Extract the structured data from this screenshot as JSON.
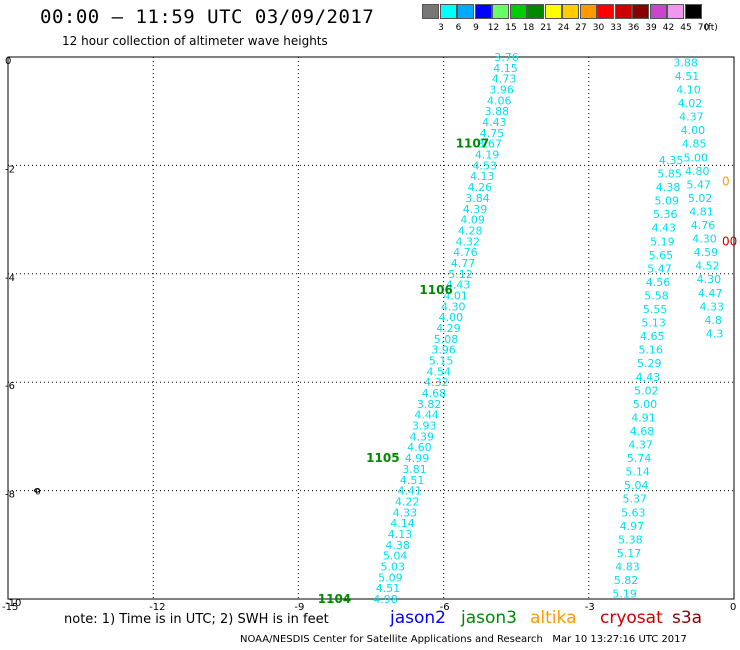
{
  "header": {
    "title": "00:00 – 11:59 UTC 03/09/2017",
    "subtitle": "12 hour collection of altimeter wave heights"
  },
  "legend": {
    "unit": "(ft)",
    "entries": [
      {
        "label": "3",
        "color": "#777777"
      },
      {
        "label": "6",
        "color": "#00ffff"
      },
      {
        "label": "9",
        "color": "#00aaff"
      },
      {
        "label": "12",
        "color": "#0000ff"
      },
      {
        "label": "15",
        "color": "#66ff66"
      },
      {
        "label": "18",
        "color": "#00cc00"
      },
      {
        "label": "21",
        "color": "#008800"
      },
      {
        "label": "24",
        "color": "#ffff00"
      },
      {
        "label": "27",
        "color": "#ffcc00"
      },
      {
        "label": "30",
        "color": "#ff9900"
      },
      {
        "label": "33",
        "color": "#ff0000"
      },
      {
        "label": "36",
        "color": "#cc0000"
      },
      {
        "label": "39",
        "color": "#880000"
      },
      {
        "label": "42",
        "color": "#cc44cc"
      },
      {
        "label": "45",
        "color": "#ee99ee"
      },
      {
        "label": "70",
        "color": "#000000"
      }
    ]
  },
  "map": {
    "lon_range": [
      -15,
      0
    ],
    "lat_range": [
      -10,
      0
    ],
    "x_ticks": [
      "-15",
      "-12",
      "-9",
      "-6",
      "-3",
      "0"
    ],
    "y_ticks": [
      "0",
      "-2",
      "-4",
      "-6",
      "-8",
      "-10"
    ],
    "island_label": "0",
    "tracks": [
      {
        "id": "1107",
        "label": "1107",
        "label_pos": {
          "lon": -5.75,
          "lat": -1.6
        },
        "points": [
          {
            "lon": -4.7,
            "lat": 0.0,
            "v": "3.76"
          },
          {
            "lon": -4.72,
            "lat": -0.2,
            "v": "4.15"
          },
          {
            "lon": -4.75,
            "lat": -0.4,
            "v": "4.73"
          },
          {
            "lon": -4.8,
            "lat": -0.6,
            "v": "3.96"
          },
          {
            "lon": -4.85,
            "lat": -0.8,
            "v": "4.06"
          },
          {
            "lon": -4.9,
            "lat": -1.0,
            "v": "3.88"
          },
          {
            "lon": -4.95,
            "lat": -1.2,
            "v": "4.43"
          },
          {
            "lon": -5.0,
            "lat": -1.4,
            "v": "4.75"
          },
          {
            "lon": -5.05,
            "lat": -1.6,
            "v": "3.67"
          },
          {
            "lon": -5.1,
            "lat": -1.8,
            "v": "4.19"
          },
          {
            "lon": -5.15,
            "lat": -2.0,
            "v": "4.53"
          },
          {
            "lon": -5.2,
            "lat": -2.2,
            "v": "4.13"
          },
          {
            "lon": -5.25,
            "lat": -2.4,
            "v": "4.26"
          },
          {
            "lon": -5.3,
            "lat": -2.6,
            "v": "3.84"
          },
          {
            "lon": -5.35,
            "lat": -2.8,
            "v": "4.39"
          },
          {
            "lon": -5.4,
            "lat": -3.0,
            "v": "4.09"
          }
        ]
      },
      {
        "id": "1106",
        "label": "1106",
        "label_pos": {
          "lon": -6.5,
          "lat": -4.3
        },
        "points": [
          {
            "lon": -5.45,
            "lat": -3.2,
            "v": "4.28"
          },
          {
            "lon": -5.5,
            "lat": -3.4,
            "v": "4.32"
          },
          {
            "lon": -5.55,
            "lat": -3.6,
            "v": "4.76"
          },
          {
            "lon": -5.6,
            "lat": -3.8,
            "v": "4.77"
          },
          {
            "lon": -5.65,
            "lat": -4.0,
            "v": "5.12"
          },
          {
            "lon": -5.7,
            "lat": -4.2,
            "v": "4.43"
          },
          {
            "lon": -5.75,
            "lat": -4.4,
            "v": "4.01"
          },
          {
            "lon": -5.8,
            "lat": -4.6,
            "v": "4.30"
          },
          {
            "lon": -5.85,
            "lat": -4.8,
            "v": "4.00"
          },
          {
            "lon": -5.9,
            "lat": -5.0,
            "v": "4.29"
          },
          {
            "lon": -5.95,
            "lat": -5.2,
            "v": "5.08"
          },
          {
            "lon": -6.0,
            "lat": -5.4,
            "v": "3.96"
          },
          {
            "lon": -6.05,
            "lat": -5.6,
            "v": "5.15"
          },
          {
            "lon": -6.1,
            "lat": -5.8,
            "v": "4.54"
          },
          {
            "lon": -6.15,
            "lat": -6.0,
            "v": "4.32"
          },
          {
            "lon": -6.2,
            "lat": -6.2,
            "v": "4.68"
          }
        ]
      },
      {
        "id": "1105",
        "label": "1105",
        "label_pos": {
          "lon": -7.6,
          "lat": -7.4
        },
        "points": [
          {
            "lon": -6.3,
            "lat": -6.4,
            "v": "3.82"
          },
          {
            "lon": -6.35,
            "lat": -6.6,
            "v": "4.44"
          },
          {
            "lon": -6.4,
            "lat": -6.8,
            "v": "3.93"
          },
          {
            "lon": -6.45,
            "lat": -7.0,
            "v": "4.39"
          },
          {
            "lon": -6.5,
            "lat": -7.2,
            "v": "4.60"
          },
          {
            "lon": -6.55,
            "lat": -7.4,
            "v": "4.99"
          },
          {
            "lon": -6.6,
            "lat": -7.6,
            "v": "3.81"
          },
          {
            "lon": -6.65,
            "lat": -7.8,
            "v": "4.51"
          },
          {
            "lon": -6.7,
            "lat": -8.0,
            "v": "4.41"
          },
          {
            "lon": -6.75,
            "lat": -8.2,
            "v": "4.22"
          },
          {
            "lon": -6.8,
            "lat": -8.4,
            "v": "4.33"
          },
          {
            "lon": -6.85,
            "lat": -8.6,
            "v": "4.14"
          }
        ]
      },
      {
        "id": "1104",
        "label": "1104",
        "label_pos": {
          "lon": -8.6,
          "lat": -10.0
        },
        "points": [
          {
            "lon": -6.9,
            "lat": -8.8,
            "v": "4.13"
          },
          {
            "lon": -6.95,
            "lat": -9.0,
            "v": "4.38"
          },
          {
            "lon": -7.0,
            "lat": -9.2,
            "v": "5.04"
          },
          {
            "lon": -7.05,
            "lat": -9.4,
            "v": "5.03"
          },
          {
            "lon": -7.1,
            "lat": -9.6,
            "v": "5.09"
          },
          {
            "lon": -7.15,
            "lat": -9.8,
            "v": "4.51"
          },
          {
            "lon": -7.2,
            "lat": -10.0,
            "v": "4.98"
          }
        ]
      }
    ],
    "east_track": {
      "points": [
        {
          "lon": -1.0,
          "lat": -0.1,
          "v": "3.88"
        },
        {
          "lon": -0.97,
          "lat": -0.35,
          "v": "4.51"
        },
        {
          "lon": -0.94,
          "lat": -0.6,
          "v": "4.10"
        },
        {
          "lon": -0.91,
          "lat": -0.85,
          "v": "4.02"
        },
        {
          "lon": -0.88,
          "lat": -1.1,
          "v": "4.37"
        },
        {
          "lon": -0.85,
          "lat": -1.35,
          "v": "4.00"
        },
        {
          "lon": -0.82,
          "lat": -1.6,
          "v": "4.85"
        },
        {
          "lon": -0.79,
          "lat": -1.85,
          "v": "5.00"
        },
        {
          "lon": -0.76,
          "lat": -2.1,
          "v": "4.80"
        },
        {
          "lon": -0.73,
          "lat": -2.35,
          "v": "5.47"
        },
        {
          "lon": -0.7,
          "lat": -2.6,
          "v": "5.02"
        },
        {
          "lon": -0.67,
          "lat": -2.85,
          "v": "4.81"
        },
        {
          "lon": -0.64,
          "lat": -3.1,
          "v": "4.76"
        },
        {
          "lon": -0.61,
          "lat": -3.35,
          "v": "4.30"
        },
        {
          "lon": -0.58,
          "lat": -3.6,
          "v": "4.59"
        },
        {
          "lon": -0.55,
          "lat": -3.85,
          "v": "4.52"
        },
        {
          "lon": -0.52,
          "lat": -4.1,
          "v": "4.30"
        },
        {
          "lon": -0.49,
          "lat": -4.35,
          "v": "4.47"
        },
        {
          "lon": -0.46,
          "lat": -4.6,
          "v": "4.33"
        },
        {
          "lon": -0.43,
          "lat": -4.85,
          "v": "4.8"
        },
        {
          "lon": -0.4,
          "lat": -5.1,
          "v": "4.3"
        }
      ],
      "points_b": [
        {
          "lon": -1.3,
          "lat": -1.9,
          "v": "4.35"
        },
        {
          "lon": -1.33,
          "lat": -2.15,
          "v": "5.85"
        },
        {
          "lon": -1.36,
          "lat": -2.4,
          "v": "4.38"
        },
        {
          "lon": -1.39,
          "lat": -2.65,
          "v": "5.09"
        },
        {
          "lon": -1.42,
          "lat": -2.9,
          "v": "5.36"
        },
        {
          "lon": -1.45,
          "lat": -3.15,
          "v": "4.43"
        },
        {
          "lon": -1.48,
          "lat": -3.4,
          "v": "5.19"
        },
        {
          "lon": -1.51,
          "lat": -3.65,
          "v": "5.65"
        },
        {
          "lon": -1.54,
          "lat": -3.9,
          "v": "5.47"
        },
        {
          "lon": -1.57,
          "lat": -4.15,
          "v": "4.56"
        },
        {
          "lon": -1.6,
          "lat": -4.4,
          "v": "5.58"
        },
        {
          "lon": -1.63,
          "lat": -4.65,
          "v": "5.55"
        },
        {
          "lon": -1.66,
          "lat": -4.9,
          "v": "5.13"
        },
        {
          "lon": -1.69,
          "lat": -5.15,
          "v": "4.65"
        },
        {
          "lon": -1.72,
          "lat": -5.4,
          "v": "5.16"
        },
        {
          "lon": -1.75,
          "lat": -5.65,
          "v": "5.29"
        },
        {
          "lon": -1.78,
          "lat": -5.9,
          "v": "4.43"
        },
        {
          "lon": -1.81,
          "lat": -6.15,
          "v": "5.02"
        },
        {
          "lon": -1.84,
          "lat": -6.4,
          "v": "5.00"
        },
        {
          "lon": -1.87,
          "lat": -6.65,
          "v": "4.91"
        },
        {
          "lon": -1.9,
          "lat": -6.9,
          "v": "4.68"
        },
        {
          "lon": -1.93,
          "lat": -7.15,
          "v": "4.37"
        },
        {
          "lon": -1.96,
          "lat": -7.4,
          "v": "5.74"
        },
        {
          "lon": -1.99,
          "lat": -7.65,
          "v": "5.14"
        },
        {
          "lon": -2.02,
          "lat": -7.9,
          "v": "5.04"
        },
        {
          "lon": -2.05,
          "lat": -8.15,
          "v": "5.37"
        },
        {
          "lon": -2.08,
          "lat": -8.4,
          "v": "5.63"
        },
        {
          "lon": -2.11,
          "lat": -8.65,
          "v": "4.97"
        },
        {
          "lon": -2.14,
          "lat": -8.9,
          "v": "5.38"
        },
        {
          "lon": -2.17,
          "lat": -9.15,
          "v": "5.17"
        },
        {
          "lon": -2.2,
          "lat": -9.4,
          "v": "4.83"
        },
        {
          "lon": -2.23,
          "lat": -9.65,
          "v": "5.82"
        },
        {
          "lon": -2.26,
          "lat": -9.9,
          "v": "5.19"
        }
      ],
      "edge_labels": [
        {
          "lon": 0.0,
          "lat": -2.3,
          "v": "0",
          "color": "#ff9900"
        },
        {
          "lon": 0.0,
          "lat": -3.4,
          "v": "00",
          "color": "#cc0000"
        }
      ]
    },
    "colors": {
      "track_value": "#00e0f0",
      "rev_label": "#008800",
      "grid": "#000000"
    }
  },
  "footer": {
    "note": "note: 1) Time is in UTC; 2) SWH is in feet",
    "satellites": [
      {
        "name": "jason2",
        "color": "#0000ff"
      },
      {
        "name": "jason3",
        "color": "#008800"
      },
      {
        "name": "altika",
        "color": "#ff9900"
      },
      {
        "name": "cryosat",
        "color": "#cc0000"
      },
      {
        "name": "s3a",
        "color": "#880000"
      }
    ],
    "credits_left": "NOAA/NESDIS Center for Satellite Applications and Research",
    "credits_right": "Mar 10 13:27:16 UTC 2017"
  }
}
